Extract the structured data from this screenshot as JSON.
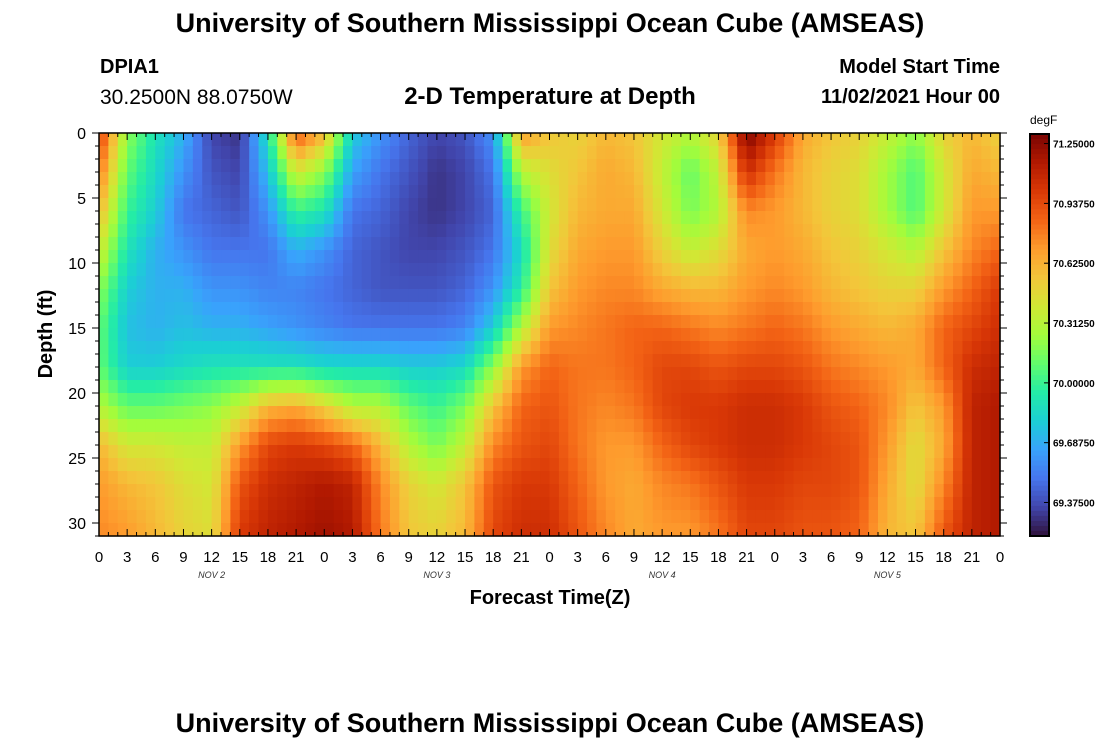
{
  "header": {
    "title": "University of Southern Mississippi Ocean Cube (AMSEAS)",
    "station_id": "DPIA1",
    "station_coords": "30.2500N  88.0750W",
    "plot_title": "2-D Temperature at Depth",
    "model_start_label": "Model Start Time",
    "model_start_value": "11/02/2021 Hour 00"
  },
  "footer": {
    "title": "University of Southern Mississippi Ocean Cube (AMSEAS)"
  },
  "colors": {
    "scale": [
      "#30123b",
      "#4145ab",
      "#4675ed",
      "#39a2fc",
      "#1bcfd4",
      "#24eca6",
      "#61fc6c",
      "#a4fc3b",
      "#d1e834",
      "#f3c63a",
      "#fe9b2d",
      "#f36315",
      "#d93806",
      "#b11901",
      "#7a0402"
    ]
  },
  "chart_data": {
    "type": "heatmap",
    "title": "2-D Temperature at Depth",
    "xlabel": "Forecast Time(Z)",
    "ylabel": "Depth (ft)",
    "x_tick_labels": [
      "0",
      "3",
      "6",
      "9",
      "12",
      "15",
      "18",
      "21",
      "0",
      "3",
      "6",
      "9",
      "12",
      "15",
      "18",
      "21",
      "0",
      "3",
      "6",
      "9",
      "12",
      "15",
      "18",
      "21",
      "0",
      "3",
      "6",
      "9",
      "12",
      "15",
      "18",
      "21",
      "0"
    ],
    "x_hours": [
      0,
      96
    ],
    "day_labels": [
      "NOV 2",
      "NOV 3",
      "NOV 4",
      "NOV 5"
    ],
    "ylim": [
      0,
      31
    ],
    "y_ticks": [
      0,
      5,
      10,
      15,
      20,
      25,
      30
    ],
    "y_tick_labels": [
      "0",
      "5",
      "10",
      "15",
      "20",
      "25",
      "30"
    ],
    "colorbar": {
      "unit": "degF",
      "min": 69.2,
      "max": 71.3,
      "tick_values": [
        71.25,
        70.9375,
        70.625,
        70.3125,
        70.0,
        69.6875,
        69.375
      ],
      "tick_labels": [
        "71.25000",
        "70.93750",
        "70.62500",
        "70.31250",
        "70.00000",
        "69.68750",
        "69.37500"
      ]
    },
    "depth_profiles_degF": [
      {
        "hour": 0,
        "values": [
          71.0,
          70.8,
          70.6,
          70.4,
          70.2,
          70.1,
          70.1,
          70.3,
          70.6,
          70.7,
          70.75
        ]
      },
      {
        "hour": 3,
        "values": [
          70.2,
          70.1,
          70.0,
          69.9,
          69.8,
          69.75,
          69.8,
          70.1,
          70.4,
          70.6,
          70.7
        ]
      },
      {
        "hour": 6,
        "values": [
          69.9,
          69.85,
          69.8,
          69.7,
          69.7,
          69.7,
          69.8,
          70.1,
          70.4,
          70.55,
          70.6
        ]
      },
      {
        "hour": 9,
        "values": [
          69.7,
          69.6,
          69.5,
          69.6,
          69.7,
          69.75,
          69.85,
          70.15,
          70.35,
          70.45,
          70.5
        ]
      },
      {
        "hour": 12,
        "values": [
          69.35,
          69.4,
          69.45,
          69.5,
          69.6,
          69.7,
          69.9,
          70.2,
          70.35,
          70.4,
          70.45
        ]
      },
      {
        "hour": 15,
        "values": [
          69.3,
          69.35,
          69.4,
          69.5,
          69.6,
          69.7,
          69.9,
          70.35,
          70.7,
          70.9,
          71.0
        ]
      },
      {
        "hour": 18,
        "values": [
          69.9,
          69.75,
          69.6,
          69.5,
          69.55,
          69.65,
          69.9,
          70.6,
          70.95,
          71.05,
          71.1
        ]
      },
      {
        "hour": 21,
        "values": [
          70.9,
          70.4,
          70.0,
          69.7,
          69.55,
          69.6,
          69.9,
          70.65,
          71.0,
          71.1,
          71.15
        ]
      },
      {
        "hour": 24,
        "values": [
          70.6,
          70.2,
          69.9,
          69.6,
          69.5,
          69.55,
          69.85,
          70.5,
          70.95,
          71.15,
          71.2
        ]
      },
      {
        "hour": 27,
        "values": [
          69.8,
          69.65,
          69.5,
          69.45,
          69.45,
          69.5,
          69.85,
          70.3,
          70.85,
          71.1,
          71.15
        ]
      },
      {
        "hour": 30,
        "values": [
          69.6,
          69.5,
          69.45,
          69.4,
          69.4,
          69.5,
          69.85,
          70.3,
          70.6,
          70.75,
          70.8
        ]
      },
      {
        "hour": 33,
        "values": [
          69.45,
          69.4,
          69.35,
          69.35,
          69.4,
          69.5,
          69.8,
          70.1,
          70.3,
          70.5,
          70.55
        ]
      },
      {
        "hour": 36,
        "values": [
          69.35,
          69.3,
          69.3,
          69.35,
          69.4,
          69.5,
          69.8,
          70.0,
          70.15,
          70.4,
          70.5
        ]
      },
      {
        "hour": 39,
        "values": [
          69.4,
          69.35,
          69.35,
          69.4,
          69.45,
          69.55,
          69.85,
          70.15,
          70.35,
          70.55,
          70.6
        ]
      },
      {
        "hour": 42,
        "values": [
          69.6,
          69.5,
          69.45,
          69.5,
          69.6,
          69.8,
          70.2,
          70.55,
          70.75,
          70.9,
          70.95
        ]
      },
      {
        "hour": 45,
        "values": [
          70.7,
          70.3,
          70.0,
          69.85,
          69.95,
          70.3,
          70.7,
          70.85,
          70.9,
          71.0,
          71.05
        ]
      },
      {
        "hour": 48,
        "values": [
          70.55,
          70.45,
          70.4,
          70.45,
          70.55,
          70.7,
          70.85,
          70.9,
          70.95,
          71.0,
          71.05
        ]
      },
      {
        "hour": 51,
        "values": [
          70.5,
          70.55,
          70.6,
          70.65,
          70.7,
          70.75,
          70.8,
          70.8,
          70.8,
          70.85,
          70.9
        ]
      },
      {
        "hour": 54,
        "values": [
          70.6,
          70.65,
          70.65,
          70.7,
          70.75,
          70.8,
          70.8,
          70.75,
          70.7,
          70.7,
          70.75
        ]
      },
      {
        "hour": 57,
        "values": [
          70.55,
          70.6,
          70.65,
          70.7,
          70.75,
          70.85,
          70.85,
          70.8,
          70.7,
          70.65,
          70.65
        ]
      },
      {
        "hour": 60,
        "values": [
          70.4,
          70.35,
          70.4,
          70.5,
          70.65,
          70.85,
          70.95,
          70.95,
          70.85,
          70.75,
          70.7
        ]
      },
      {
        "hour": 63,
        "values": [
          70.3,
          70.1,
          70.15,
          70.35,
          70.6,
          70.8,
          70.95,
          71.0,
          70.95,
          70.8,
          70.7
        ]
      },
      {
        "hour": 66,
        "values": [
          70.5,
          70.35,
          70.3,
          70.45,
          70.6,
          70.75,
          70.9,
          71.0,
          71.0,
          70.9,
          70.8
        ]
      },
      {
        "hour": 69,
        "values": [
          71.3,
          71.05,
          70.75,
          70.65,
          70.7,
          70.8,
          70.95,
          71.05,
          71.05,
          71.0,
          70.95
        ]
      },
      {
        "hour": 72,
        "values": [
          71.0,
          70.8,
          70.7,
          70.7,
          70.75,
          70.85,
          70.95,
          71.05,
          71.05,
          71.0,
          70.95
        ]
      },
      {
        "hour": 75,
        "values": [
          70.65,
          70.6,
          70.6,
          70.65,
          70.7,
          70.8,
          70.9,
          71.0,
          71.0,
          70.95,
          70.9
        ]
      },
      {
        "hour": 78,
        "values": [
          70.55,
          70.5,
          70.5,
          70.55,
          70.6,
          70.7,
          70.8,
          70.9,
          70.95,
          70.95,
          70.9
        ]
      },
      {
        "hour": 81,
        "values": [
          70.5,
          70.45,
          70.45,
          70.5,
          70.55,
          70.65,
          70.75,
          70.85,
          70.9,
          70.9,
          70.85
        ]
      },
      {
        "hour": 84,
        "values": [
          70.35,
          70.25,
          70.25,
          70.4,
          70.5,
          70.6,
          70.7,
          70.75,
          70.7,
          70.65,
          70.6
        ]
      },
      {
        "hour": 87,
        "values": [
          70.2,
          70.05,
          70.05,
          70.3,
          70.5,
          70.65,
          70.65,
          70.55,
          70.45,
          70.45,
          70.55
        ]
      },
      {
        "hour": 90,
        "values": [
          70.5,
          70.4,
          70.4,
          70.55,
          70.7,
          70.85,
          70.85,
          70.7,
          70.65,
          70.75,
          70.9
        ]
      },
      {
        "hour": 93,
        "values": [
          70.6,
          70.65,
          70.7,
          70.75,
          70.85,
          70.95,
          71.05,
          71.1,
          71.1,
          71.1,
          71.1
        ]
      },
      {
        "hour": 96,
        "values": [
          70.5,
          70.6,
          70.7,
          70.85,
          71.0,
          71.05,
          71.1,
          71.15,
          71.15,
          71.15,
          71.15
        ]
      }
    ],
    "depth_levels_ft": [
      0,
      3,
      6,
      9,
      12,
      15,
      18,
      21,
      24,
      27,
      31
    ]
  }
}
